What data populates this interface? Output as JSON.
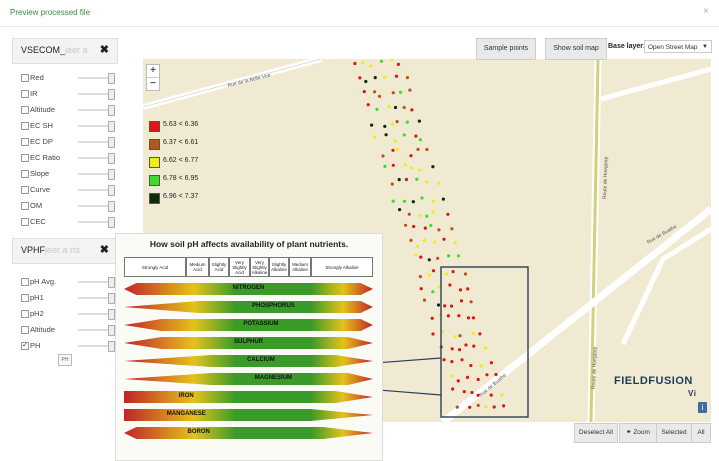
{
  "header": {
    "title": "Preview processed file",
    "close": "×"
  },
  "panel1": {
    "name": "VSECOM_",
    "name_faded": "jeer a",
    "close": "✖",
    "layers": [
      {
        "label": "Red",
        "checked": false
      },
      {
        "label": "IR",
        "checked": false
      },
      {
        "label": "Altitude",
        "checked": false
      },
      {
        "label": "EC SH",
        "checked": false
      },
      {
        "label": "EC DP",
        "checked": false
      },
      {
        "label": "EC Ratio",
        "checked": false
      },
      {
        "label": "Slope",
        "checked": false
      },
      {
        "label": "Curve",
        "checked": false
      },
      {
        "label": "OM",
        "checked": false
      },
      {
        "label": "CEC",
        "checked": false
      }
    ]
  },
  "panel2": {
    "name": "VPHF",
    "name_faded": "jeer a rts",
    "close": "✖",
    "layers": [
      {
        "label": "pH Avg.",
        "checked": false
      },
      {
        "label": "pH1",
        "checked": false
      },
      {
        "label": "pH2",
        "checked": false
      },
      {
        "label": "Altitude",
        "checked": false
      },
      {
        "label": "PH",
        "checked": true
      }
    ],
    "chip": "PH"
  },
  "toolbar": {
    "sample_points": "Sample points",
    "show_soil_map": "Show soil map",
    "base_layer_label": "Base layer:",
    "base_layer_value": "Open Street Map"
  },
  "map": {
    "zoom_in": "+",
    "zoom_out": "−",
    "roads": [
      "Rue de la Belle Vue",
      "Route de Hoegtarp",
      "Rue de Buathe",
      "Rue de Buathe",
      "Route de Hoegtarp"
    ],
    "legend": [
      {
        "label": "5.63 < 6.36",
        "color": "#e01414"
      },
      {
        "label": "6.37 < 6.61",
        "color": "#b3561a"
      },
      {
        "label": "6.62 < 6.77",
        "color": "#f3ea1a"
      },
      {
        "label": "6.78 < 6.95",
        "color": "#3ddc2a"
      },
      {
        "label": "6.96 < 7.37",
        "color": "#0e2a08"
      }
    ],
    "brand": "FIELDFUSION",
    "brand_sub": "Vi",
    "info": "i"
  },
  "chart_data": {
    "type": "diagram",
    "title": "How soil pH affects availability of plant nutrients.",
    "columns": [
      "Strongly Acid",
      "Medium Acid",
      "Slightly Acid",
      "Very Slightly Acid",
      "Very Slightly Alkaline",
      "Slightly Alkaline",
      "Medium Alkaline",
      "Strongly Alkaline"
    ],
    "nutrients": [
      "NITROGEN",
      "PHOSPHORUS",
      "POTASSIUM",
      "SULPHUR",
      "CALCIUM",
      "MAGNESIUM",
      "IRON",
      "MANGANESE",
      "BORON"
    ]
  },
  "footer": {
    "deselect_all": "Deselect All",
    "zoom": "Zoom",
    "selected": "Selected",
    "all": "All"
  }
}
